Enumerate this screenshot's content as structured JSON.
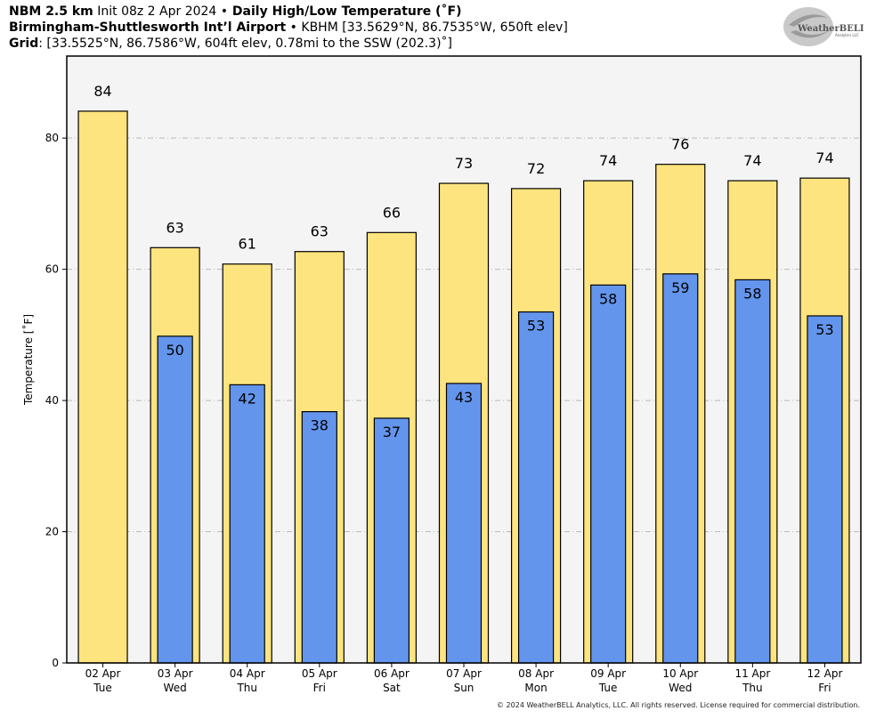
{
  "header": {
    "line1_bold_a": "NBM 2.5 km",
    "line1_normal": " Init 08z 2 Apr 2024 ",
    "line1_bullet": "•",
    "line1_bold_b": " Daily High/Low Temperature (˚F)",
    "line2_bold": "Birmingham-Shuttlesworth Int’l Airport",
    "line2_bullet": " • ",
    "line2_normal": "KBHM [33.5629°N, 86.7535°W, 650ft elev]",
    "line3_bold": "Grid",
    "line3_normal": ": [33.5525°N, 86.7586°W, 604ft elev, 0.78mi to the SSW (202.3)˚]"
  },
  "logo": {
    "text": "WeatherBELL",
    "subtext": "Analytics LLC"
  },
  "copyright": "© 2024 WeatherBELL Analytics, LLC. All rights reserved. License required for commercial distribution.",
  "chart_data": {
    "type": "bar",
    "title": "Daily High/Low Temperature (˚F)",
    "xlabel": "",
    "ylabel": "Temperature [˚F]",
    "ylim": [
      0,
      92.5
    ],
    "yticks": [
      0,
      20,
      40,
      60,
      80
    ],
    "grid": true,
    "categories": [
      "02 Apr",
      "03 Apr",
      "04 Apr",
      "05 Apr",
      "06 Apr",
      "07 Apr",
      "08 Apr",
      "09 Apr",
      "10 Apr",
      "11 Apr",
      "12 Apr"
    ],
    "weekdays": [
      "Tue",
      "Wed",
      "Thu",
      "Fri",
      "Sat",
      "Sun",
      "Mon",
      "Tue",
      "Wed",
      "Thu",
      "Fri"
    ],
    "series": [
      {
        "name": "High",
        "color": "#fde47f",
        "values": [
          84.1,
          63.3,
          60.8,
          62.7,
          65.6,
          73.1,
          72.3,
          73.5,
          76.0,
          73.5,
          73.9
        ],
        "labels": [
          "84",
          "63",
          "61",
          "63",
          "66",
          "73",
          "72",
          "74",
          "76",
          "74",
          "74"
        ]
      },
      {
        "name": "Low",
        "color": "#6495ed",
        "values": [
          null,
          49.8,
          42.4,
          38.3,
          37.3,
          42.6,
          53.5,
          57.6,
          59.3,
          58.4,
          52.9
        ],
        "labels": [
          "",
          "50",
          "42",
          "38",
          "37",
          "43",
          "53",
          "58",
          "59",
          "58",
          "53"
        ]
      }
    ],
    "colors": {
      "plot_background": "#f4f4f4",
      "grid": "#bbbbbb",
      "bar_edge": "#000000"
    }
  }
}
